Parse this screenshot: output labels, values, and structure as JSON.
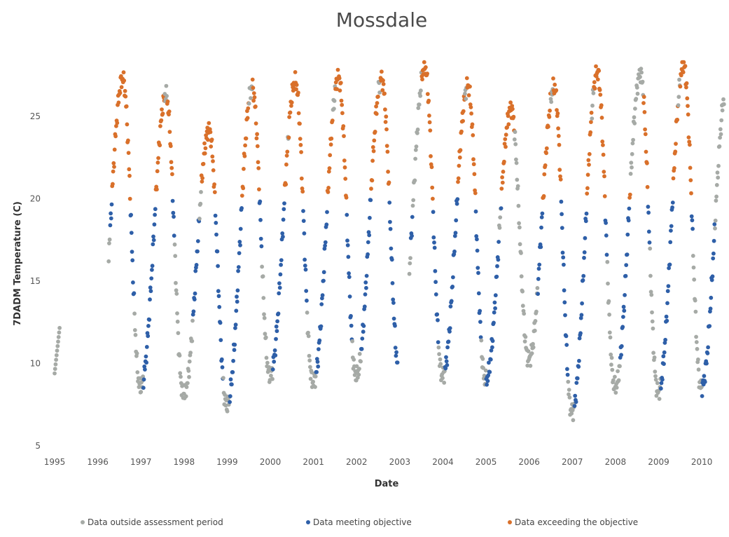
{
  "chart_data": {
    "type": "scatter",
    "title": "Mossdale",
    "xlabel": "Date",
    "ylabel": "7DADM Temperature (C)",
    "xlim": [
      1995,
      2010.55
    ],
    "ylim": [
      5,
      28.5
    ],
    "x_ticks": [
      "1995",
      "1996",
      "1997",
      "1998",
      "1999",
      "2000",
      "2001",
      "2002",
      "2003",
      "2004",
      "2005",
      "2006",
      "2007",
      "2008",
      "2009",
      "2010"
    ],
    "y_ticks": [
      "5",
      "10",
      "15",
      "20",
      "25"
    ],
    "grid": false,
    "legend_position": "bottom",
    "objective": 20,
    "series": [
      {
        "name": "Data outside assessment period",
        "color": "#a6aaa6"
      },
      {
        "name": "Data meeting objective",
        "color": "#2e5fa8"
      },
      {
        "name": "Data exceeding the objective",
        "color": "#d9702a"
      }
    ],
    "annual_cycle": [
      {
        "year": 1995,
        "summer_peak": null,
        "winter_min": 9.3,
        "assessment": []
      },
      {
        "year": 1996,
        "summer_peak": 27.3,
        "winter_min": 8.6,
        "assessment": [
          [
            1996.28,
            1996.85
          ]
        ]
      },
      {
        "year": 1997,
        "summer_peak": 26.3,
        "winter_min": 8.2,
        "assessment": [
          [
            1997.05,
            1997.55
          ],
          [
            1997.6,
            1997.78
          ]
        ]
      },
      {
        "year": 1998,
        "summer_peak": 24.2,
        "winter_min": 7.5,
        "assessment": [
          [
            1998.2,
            1998.35
          ],
          [
            1998.4,
            1998.9
          ]
        ]
      },
      {
        "year": 1999,
        "summer_peak": 26.8,
        "winter_min": 9.3,
        "assessment": [
          [
            1999.05,
            1999.5
          ],
          [
            1999.58,
            1999.8
          ]
        ]
      },
      {
        "year": 2000,
        "summer_peak": 27.1,
        "winter_min": 8.9,
        "assessment": [
          [
            2000.05,
            2000.4
          ],
          [
            2000.42,
            2000.85
          ]
        ]
      },
      {
        "year": 2001,
        "summer_peak": 27.4,
        "winter_min": 9.3,
        "assessment": [
          [
            2001.05,
            2001.45
          ],
          [
            2001.5,
            2001.9
          ]
        ]
      },
      {
        "year": 2002,
        "summer_peak": 27.3,
        "winter_min": 9.6,
        "assessment": [
          [
            2002.1,
            2002.5
          ],
          [
            2002.55,
            2002.95
          ]
        ]
      },
      {
        "year": 2003,
        "summer_peak": 28.0,
        "winter_min": 9.3,
        "assessment": [
          [
            2003.25,
            2003.3
          ],
          [
            2003.5,
            2003.9
          ]
        ]
      },
      {
        "year": 2004,
        "summer_peak": 26.9,
        "winter_min": 9.0,
        "assessment": [
          [
            2004.05,
            2004.5
          ],
          [
            2004.55,
            2004.88
          ]
        ]
      },
      {
        "year": 2005,
        "summer_peak": 25.5,
        "winter_min": 10.3,
        "assessment": [
          [
            2005.0,
            2005.3
          ],
          [
            2005.35,
            2005.65
          ]
        ]
      },
      {
        "year": 2006,
        "summer_peak": 26.8,
        "winter_min": 7.1,
        "assessment": [
          [
            2006.2,
            2006.5
          ],
          [
            2006.55,
            2006.9
          ]
        ]
      },
      {
        "year": 2007,
        "summer_peak": 27.7,
        "winter_min": 8.6,
        "assessment": [
          [
            2007.05,
            2007.45
          ],
          [
            2007.5,
            2007.8
          ]
        ]
      },
      {
        "year": 2008,
        "summer_peak": 27.6,
        "winter_min": 8.3,
        "assessment": [
          [
            2008.1,
            2008.35
          ],
          [
            2008.65,
            2008.8
          ]
        ]
      },
      {
        "year": 2009,
        "summer_peak": 28.1,
        "winter_min": 8.6,
        "assessment": [
          [
            2009.05,
            2009.45
          ],
          [
            2009.5,
            2009.8
          ]
        ]
      },
      {
        "year": 2010,
        "summer_peak": 26.8,
        "winter_min": null,
        "assessment": [
          [
            2010.0,
            2010.3
          ]
        ]
      }
    ]
  }
}
